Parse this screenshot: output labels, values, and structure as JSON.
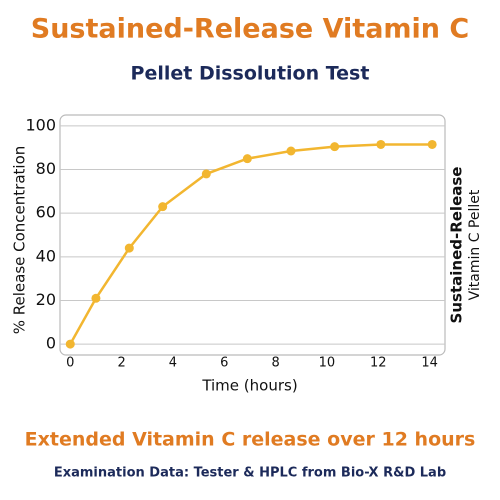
{
  "chart_data": {
    "type": "line",
    "title": "Sustained-Release Vitamin C",
    "subtitle": "Pellet Dissolution Test",
    "ylabel": "% Release Concentration",
    "xlabel": "Time (hours)",
    "right_label": [
      "Sustained-Release",
      "Vitamin C Pellet"
    ],
    "caption": "Extended Vitamin C release over 12 hours",
    "footnote": "Examination Data: Tester & HPLC from Bio-X R&D Lab",
    "x": [
      0,
      1,
      2.3,
      3.6,
      5.3,
      6.9,
      8.6,
      10.3,
      12.1,
      14.1
    ],
    "series": [
      {
        "name": "Sustained-Release Vitamin C Pellet",
        "color": "#f2b630",
        "values": [
          0,
          21,
          44,
          63,
          78,
          85,
          88.5,
          90.5,
          91.5,
          91.5
        ]
      }
    ],
    "xlim": [
      -0.4,
      14.6
    ],
    "xticks": [
      0,
      2,
      4,
      6,
      8,
      10,
      12,
      14
    ],
    "ylim": [
      -5,
      105
    ],
    "yticks": [
      0,
      20,
      40,
      60,
      80,
      100
    ],
    "grid": true
  }
}
